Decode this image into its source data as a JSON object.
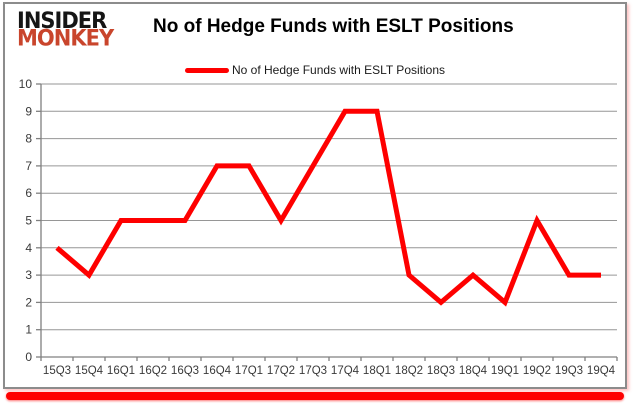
{
  "logo": {
    "line1": "INSIDER",
    "line2": "MONKEY"
  },
  "header": {
    "title": "No of Hedge Funds with ESLT Positions"
  },
  "legend": {
    "label": "No of Hedge Funds with ESLT Positions"
  },
  "colors": {
    "series": "#fe0000",
    "grid": "#969696",
    "axis": "#808080",
    "tick_text": "#3a3a3a",
    "logo_black": "#151515",
    "logo_red": "#c9452c",
    "accent_bar": "#fe0000"
  },
  "chart_data": {
    "type": "line",
    "title": "No of Hedge Funds with ESLT Positions",
    "categories": [
      "15Q3",
      "15Q4",
      "16Q1",
      "16Q2",
      "16Q3",
      "16Q4",
      "17Q1",
      "17Q2",
      "17Q3",
      "17Q4",
      "18Q1",
      "18Q2",
      "18Q3",
      "18Q4",
      "19Q1",
      "19Q2",
      "19Q3",
      "19Q4"
    ],
    "series": [
      {
        "name": "No of Hedge Funds with ESLT Positions",
        "values": [
          4,
          3,
          5,
          5,
          5,
          7,
          7,
          5,
          7,
          9,
          9,
          3,
          2,
          3,
          2,
          5,
          3,
          3
        ]
      }
    ],
    "xlabel": "",
    "ylabel": "",
    "ylim": [
      0,
      10
    ],
    "ytick_step": 1,
    "yticks": [
      0,
      1,
      2,
      3,
      4,
      5,
      6,
      7,
      8,
      9,
      10
    ],
    "grid": true,
    "legend_position": "top-center",
    "line_width": 5
  }
}
